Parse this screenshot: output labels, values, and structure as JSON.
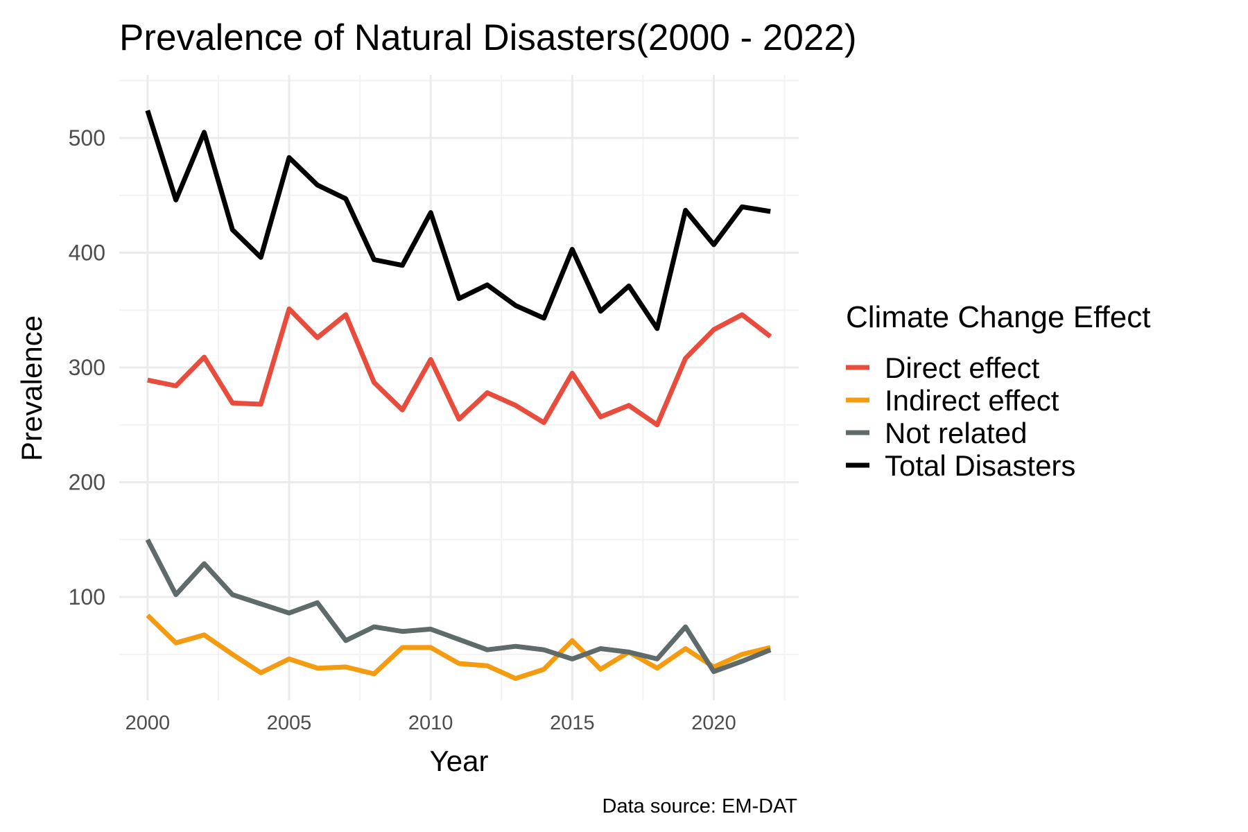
{
  "chart_data": {
    "type": "line",
    "title": "Prevalence of Natural Disasters(2000 - 2022)",
    "xlabel": "Year",
    "ylabel": "Prevalence",
    "caption": "Data source: EM-DAT",
    "legend_title": "Climate Change Effect",
    "legend_position": "right",
    "grid": true,
    "xlim": [
      1999,
      2023
    ],
    "ylim": [
      10,
      555
    ],
    "x_ticks": [
      2000,
      2005,
      2010,
      2015,
      2020
    ],
    "x_tick_labels": [
      "2000",
      "2005",
      "2010",
      "2015",
      "2020"
    ],
    "y_ticks": [
      100,
      200,
      300,
      400,
      500
    ],
    "y_tick_labels": [
      "100",
      "200",
      "300",
      "400",
      "500"
    ],
    "x": [
      2000,
      2001,
      2002,
      2003,
      2004,
      2005,
      2006,
      2007,
      2008,
      2009,
      2010,
      2011,
      2012,
      2013,
      2014,
      2015,
      2016,
      2017,
      2018,
      2019,
      2020,
      2021,
      2022
    ],
    "series": [
      {
        "name": "Direct effect",
        "color": "#e74c3c",
        "values": [
          289,
          284,
          309,
          269,
          268,
          351,
          326,
          346,
          287,
          263,
          307,
          255,
          278,
          267,
          252,
          295,
          257,
          267,
          250,
          308,
          333,
          346,
          327
        ]
      },
      {
        "name": "Indirect effect",
        "color": "#f39c12",
        "values": [
          84,
          60,
          67,
          50,
          34,
          46,
          38,
          39,
          33,
          56,
          56,
          42,
          40,
          29,
          37,
          62,
          37,
          52,
          38,
          55,
          39,
          50,
          56
        ]
      },
      {
        "name": "Not related",
        "color": "#5f6a6a",
        "values": [
          150,
          102,
          129,
          102,
          94,
          86,
          95,
          62,
          74,
          70,
          72,
          63,
          54,
          57,
          54,
          46,
          55,
          52,
          46,
          74,
          35,
          44,
          54
        ]
      },
      {
        "name": "Total Disasters",
        "color": "#000000",
        "values": [
          524,
          446,
          505,
          420,
          396,
          483,
          459,
          447,
          394,
          389,
          435,
          360,
          372,
          354,
          343,
          403,
          349,
          371,
          334,
          437,
          407,
          440,
          436
        ]
      }
    ]
  }
}
